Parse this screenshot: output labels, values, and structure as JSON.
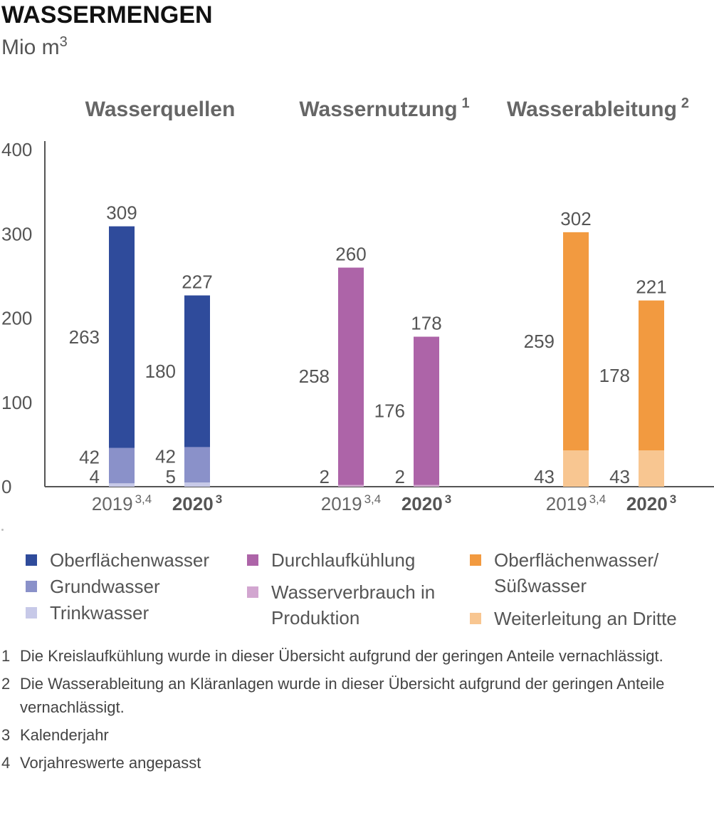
{
  "header": {
    "title": "WASSERMENGEN",
    "unit": "Mio m",
    "unit_sup": "3"
  },
  "chart_data": {
    "type": "bar",
    "stacked": true,
    "ylim": [
      0,
      400
    ],
    "yticks": [
      "0",
      "100",
      "200",
      "300",
      "400"
    ],
    "groups": [
      {
        "title": "Wasserquellen",
        "title_sup": "",
        "bars": [
          {
            "year": "2019",
            "year_sup": "3,4",
            "bold": false,
            "total": 309,
            "segments": [
              {
                "series": "Trinkwasser",
                "value": 4,
                "label": "4"
              },
              {
                "series": "Grundwasser",
                "value": 42,
                "label": "42"
              },
              {
                "series": "Oberflächenwasser",
                "value": 263,
                "label": "263"
              }
            ]
          },
          {
            "year": "2020",
            "year_sup": "3",
            "bold": true,
            "total": 227,
            "segments": [
              {
                "series": "Trinkwasser",
                "value": 5,
                "label": "5"
              },
              {
                "series": "Grundwasser",
                "value": 42,
                "label": "42"
              },
              {
                "series": "Oberflächenwasser",
                "value": 180,
                "label": "180"
              }
            ]
          }
        ]
      },
      {
        "title": "Wassernutzung",
        "title_sup": "1",
        "bars": [
          {
            "year": "2019",
            "year_sup": "3,4",
            "bold": false,
            "total": 260,
            "segments": [
              {
                "series": "Wasserverbrauch in Produktion",
                "value": 2,
                "label": "2"
              },
              {
                "series": "Durchlaufkühlung",
                "value": 258,
                "label": "258"
              }
            ]
          },
          {
            "year": "2020",
            "year_sup": "3",
            "bold": true,
            "total": 178,
            "segments": [
              {
                "series": "Wasserverbrauch in Produktion",
                "value": 2,
                "label": "2"
              },
              {
                "series": "Durchlaufkühlung",
                "value": 176,
                "label": "176"
              }
            ]
          }
        ]
      },
      {
        "title": "Wasserableitung",
        "title_sup": "2",
        "bars": [
          {
            "year": "2019",
            "year_sup": "3,4",
            "bold": false,
            "total": 302,
            "segments": [
              {
                "series": "Weiterleitung an Dritte",
                "value": 43,
                "label": "43"
              },
              {
                "series": "Oberflächenwasser/Süßwasser",
                "value": 259,
                "label": "259"
              }
            ]
          },
          {
            "year": "2020",
            "year_sup": "3",
            "bold": true,
            "total": 221,
            "segments": [
              {
                "series": "Weiterleitung an Dritte",
                "value": 43,
                "label": "43"
              },
              {
                "series": "Oberflächenwasser/Süßwasser",
                "value": 178,
                "label": "178"
              }
            ]
          }
        ]
      }
    ],
    "colors": {
      "Oberflächenwasser": "#2f4b9b",
      "Grundwasser": "#8a91c9",
      "Trinkwasser": "#c7c9e8",
      "Durchlaufkühlung": "#ad64a8",
      "Wasserverbrauch in Produktion": "#d2a6d0",
      "Oberflächenwasser/Süßwasser": "#f29a40",
      "Weiterleitung an Dritte": "#f8c691"
    },
    "legend": [
      {
        "line1": "Oberflächenwasser",
        "line2": "",
        "color": "#2f4b9b"
      },
      {
        "line1": "Grundwasser",
        "line2": "",
        "color": "#8a91c9"
      },
      {
        "line1": "Trinkwasser",
        "line2": "",
        "color": "#c7c9e8"
      },
      {
        "line1": "Durchlaufkühlung",
        "line2": "",
        "color": "#ad64a8"
      },
      {
        "line1": "Wasserverbrauch in",
        "line2": "Produktion",
        "color": "#d2a6d0"
      },
      {
        "line1": "Oberflächenwasser/",
        "line2": "Süßwasser",
        "color": "#f29a40"
      },
      {
        "line1": "Weiterleitung an Dritte",
        "line2": "",
        "color": "#f8c691"
      }
    ]
  },
  "footnotes": [
    {
      "num": "1",
      "text": "Die Kreislaufkühlung wurde in dieser Übersicht aufgrund der geringen Anteile vernachlässigt."
    },
    {
      "num": "2",
      "text": "Die Wasserableitung an Kläranlagen wurde in dieser Übersicht aufgrund der geringen Anteile vernachlässigt."
    },
    {
      "num": "3",
      "text": "Kalenderjahr"
    },
    {
      "num": "4",
      "text": "Vorjahreswerte angepasst"
    }
  ]
}
